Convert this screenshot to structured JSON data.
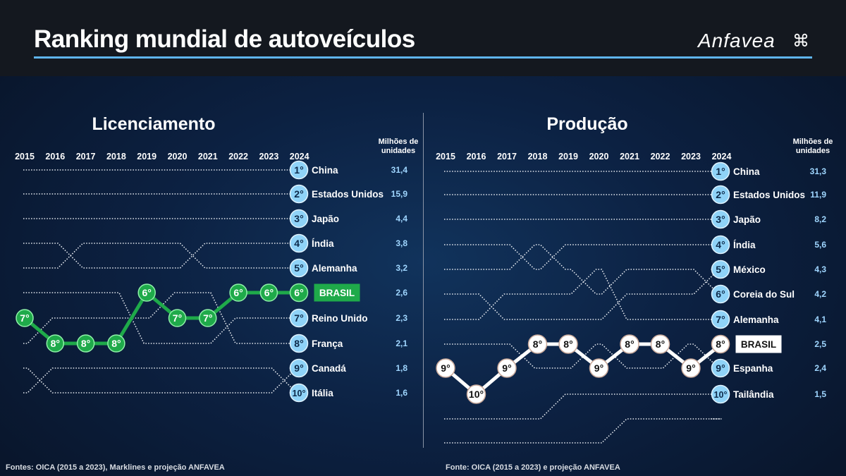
{
  "header": {
    "title": "Ranking mundial de autoveículos",
    "logo_text": "Anfavea",
    "logo_mark": "⌘"
  },
  "colors": {
    "green": "#1faa4a",
    "node_blue": "#8fd3f8",
    "value_blue": "#9fd6ff",
    "rule_blue": "#5fb4ee"
  },
  "chart_data": [
    {
      "type": "line",
      "title": "Licenciamento",
      "years": [
        "2015",
        "2016",
        "2017",
        "2018",
        "2019",
        "2020",
        "2021",
        "2022",
        "2023",
        "2024"
      ],
      "unit_label": [
        "Milhões de",
        "unidades"
      ],
      "ranks": [
        {
          "rank": "1°",
          "country": "China",
          "value": "31,4"
        },
        {
          "rank": "2°",
          "country": "Estados Unidos",
          "value": "15,9"
        },
        {
          "rank": "3°",
          "country": "Japão",
          "value": "4,4"
        },
        {
          "rank": "4°",
          "country": "Índia",
          "value": "3,8"
        },
        {
          "rank": "5°",
          "country": "Alemanha",
          "value": "3,2"
        },
        {
          "rank": "6°",
          "country": "BRASIL",
          "value": "2,6",
          "highlight": true
        },
        {
          "rank": "7°",
          "country": "Reino Unido",
          "value": "2,3"
        },
        {
          "rank": "8°",
          "country": "França",
          "value": "2,1"
        },
        {
          "rank": "9°",
          "country": "Canadá",
          "value": "1,8"
        },
        {
          "rank": "10°",
          "country": "Itália",
          "value": "1,6"
        }
      ],
      "brazil_series": {
        "name": "BRASIL",
        "values": [
          7,
          8,
          8,
          8,
          6,
          7,
          7,
          6,
          6,
          6
        ]
      },
      "other_series": [
        {
          "values": [
            1,
            1,
            1,
            1,
            1,
            1,
            1,
            1,
            1,
            1
          ]
        },
        {
          "values": [
            2,
            2,
            2,
            2,
            2,
            2,
            2,
            2,
            2,
            2
          ]
        },
        {
          "values": [
            3,
            3,
            3,
            3,
            3,
            3,
            3,
            3,
            3,
            3
          ]
        },
        {
          "values": [
            4,
            4,
            5,
            5,
            5,
            5,
            4,
            4,
            4,
            4
          ]
        },
        {
          "values": [
            5,
            5,
            4,
            4,
            4,
            4,
            5,
            5,
            5,
            5
          ]
        },
        {
          "values": [
            6,
            6,
            6,
            6,
            8,
            8,
            8,
            7,
            7,
            7
          ]
        },
        {
          "values": [
            8,
            7,
            7,
            7,
            7,
            6,
            6,
            8,
            8,
            8
          ]
        },
        {
          "values": [
            9,
            10,
            10,
            10,
            10,
            10,
            10,
            10,
            10,
            9
          ]
        },
        {
          "values": [
            10,
            9,
            9,
            9,
            9,
            9,
            9,
            9,
            9,
            10
          ]
        }
      ],
      "source": "Fontes: OICA (2015 a 2023), Marklines e projeção ANFAVEA"
    },
    {
      "type": "line",
      "title": "Produção",
      "years": [
        "2015",
        "2016",
        "2017",
        "2018",
        "2019",
        "2020",
        "2021",
        "2022",
        "2023",
        "2024"
      ],
      "unit_label": [
        "Milhões de",
        "unidades"
      ],
      "ranks": [
        {
          "rank": "1°",
          "country": "China",
          "value": "31,3"
        },
        {
          "rank": "2°",
          "country": "Estados Unidos",
          "value": "11,9"
        },
        {
          "rank": "3°",
          "country": "Japão",
          "value": "8,2"
        },
        {
          "rank": "4°",
          "country": "Índia",
          "value": "5,6"
        },
        {
          "rank": "5°",
          "country": "México",
          "value": "4,3"
        },
        {
          "rank": "6°",
          "country": "Coreia do Sul",
          "value": "4,2"
        },
        {
          "rank": "7°",
          "country": "Alemanha",
          "value": "4,1"
        },
        {
          "rank": "8°",
          "country": "BRASIL",
          "value": "2,5",
          "highlight": true
        },
        {
          "rank": "9°",
          "country": "Espanha",
          "value": "2,4"
        },
        {
          "rank": "10°",
          "country": "Tailândia",
          "value": "1,5"
        }
      ],
      "brazil_series": {
        "name": "BRASIL",
        "values": [
          9,
          10,
          9,
          8,
          8,
          9,
          8,
          8,
          9,
          8
        ]
      },
      "other_series": [
        {
          "values": [
            1,
            1,
            1,
            1,
            1,
            1,
            1,
            1,
            1,
            1
          ]
        },
        {
          "values": [
            2,
            2,
            2,
            2,
            2,
            2,
            2,
            2,
            2,
            2
          ]
        },
        {
          "values": [
            3,
            3,
            3,
            3,
            3,
            3,
            3,
            3,
            3,
            3
          ]
        },
        {
          "values": [
            4,
            4,
            4,
            5,
            4,
            4,
            4,
            4,
            4,
            4
          ]
        },
        {
          "values": [
            6,
            6,
            7,
            7,
            7,
            7,
            6,
            6,
            6,
            5
          ]
        },
        {
          "values": [
            5,
            5,
            5,
            4,
            5,
            6,
            5,
            5,
            5,
            6
          ]
        },
        {
          "values": [
            7,
            7,
            6,
            6,
            6,
            5,
            7,
            7,
            7,
            7
          ]
        },
        {
          "values": [
            8,
            8,
            8,
            9,
            9,
            8,
            9,
            9,
            8,
            9
          ]
        },
        {
          "values": [
            11,
            11,
            11,
            11,
            10,
            10,
            10,
            10,
            10,
            10
          ]
        },
        {
          "values": [
            12,
            12,
            12,
            12,
            12,
            12,
            11,
            11,
            11,
            11
          ]
        }
      ],
      "source": "Fonte: OICA (2015 a 2023) e projeção ANFAVEA"
    }
  ]
}
